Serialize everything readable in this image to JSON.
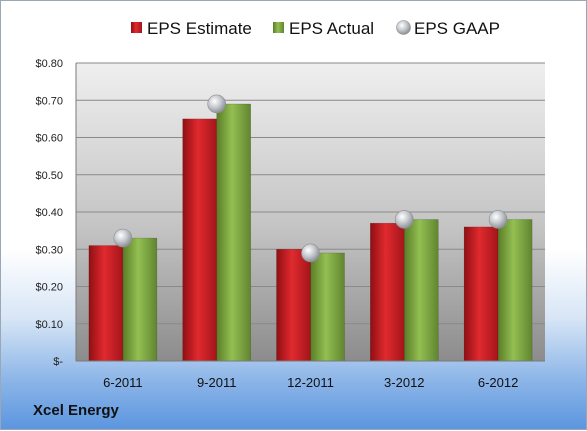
{
  "chart_data": {
    "type": "bar",
    "categories": [
      "6-2011",
      "9-2011",
      "12-2011",
      "3-2012",
      "6-2012"
    ],
    "series": [
      {
        "name": "EPS Estimate",
        "kind": "bar",
        "color": "#c0161b",
        "values": [
          0.31,
          0.65,
          0.3,
          0.37,
          0.36
        ]
      },
      {
        "name": "EPS Actual",
        "kind": "bar",
        "color": "#77a03a",
        "values": [
          0.33,
          0.69,
          0.29,
          0.38,
          0.38
        ]
      },
      {
        "name": "EPS GAAP",
        "kind": "marker",
        "color": "#b9bcc1",
        "values": [
          0.33,
          0.69,
          0.29,
          0.38,
          0.38
        ]
      }
    ],
    "yticks": [
      {
        "value": 0,
        "label": "$-"
      },
      {
        "value": 0.1,
        "label": "$0.10"
      },
      {
        "value": 0.2,
        "label": "$0.20"
      },
      {
        "value": 0.3,
        "label": "$0.30"
      },
      {
        "value": 0.4,
        "label": "$0.40"
      },
      {
        "value": 0.5,
        "label": "$0.50"
      },
      {
        "value": 0.6,
        "label": "$0.60"
      },
      {
        "value": 0.7,
        "label": "$0.70"
      },
      {
        "value": 0.8,
        "label": "$0.80"
      }
    ],
    "ylim": [
      0,
      0.8
    ],
    "grid": true,
    "legend_position": "top"
  },
  "company": "Xcel Energy"
}
